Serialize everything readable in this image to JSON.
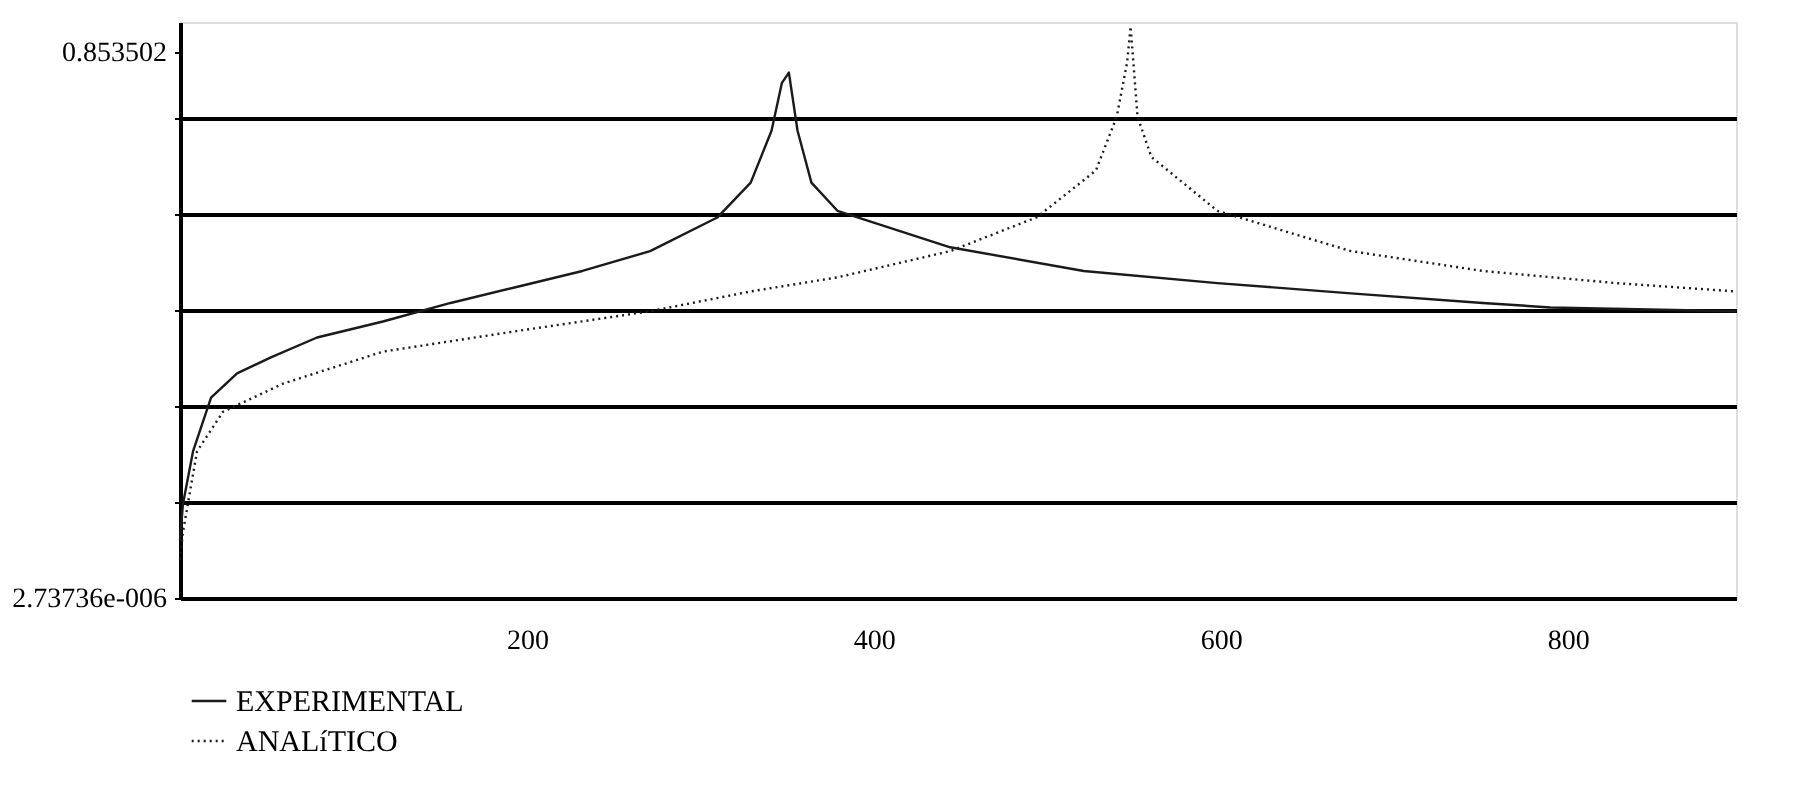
{
  "chart_data": {
    "type": "line",
    "xlim": [
      0,
      897
    ],
    "xticks": [
      200,
      400,
      600,
      800
    ],
    "ylim": [
      2.73736e-06,
      0.9
    ],
    "yticks": [
      {
        "value": 2.73736e-06,
        "label": "2.73736e-006"
      },
      {
        "value": 0.15,
        "label": null
      },
      {
        "value": 0.3,
        "label": null
      },
      {
        "value": 0.45,
        "label": null
      },
      {
        "value": 0.6,
        "label": null
      },
      {
        "value": 0.75,
        "label": null
      },
      {
        "value": 0.853502,
        "label": "0.853502"
      }
    ],
    "grid": "y",
    "legend": "bottom",
    "series": [
      {
        "name": "EXPERIMENTAL",
        "color": "#1a1a1a",
        "line_style": "solid",
        "x": [
          0,
          1.7,
          7.5,
          17.9,
          32.9,
          52.4,
          79,
          117,
          156,
          194,
          232,
          271,
          310,
          329,
          341,
          347,
          351,
          356,
          364,
          379,
          444,
          521,
          598,
          675,
          751,
          790,
          897
        ],
        "values": [
          0.09,
          0.147,
          0.229,
          0.313,
          0.351,
          0.376,
          0.407,
          0.432,
          0.461,
          0.486,
          0.511,
          0.542,
          0.595,
          0.649,
          0.73,
          0.805,
          0.821,
          0.73,
          0.649,
          0.605,
          0.548,
          0.511,
          0.492,
          0.476,
          0.461,
          0.454,
          0.448
        ]
      },
      {
        "name": "ANALíTICO",
        "color": "#1a1a1a",
        "line_style": "dotted",
        "x": [
          0,
          1.7,
          9.8,
          24.8,
          59.5,
          117,
          194,
          271,
          329,
          379,
          444,
          494,
          528,
          540,
          546,
          548,
          552,
          560,
          598,
          675,
          751,
          828,
          897
        ],
        "values": [
          0.06,
          0.103,
          0.229,
          0.291,
          0.335,
          0.385,
          0.417,
          0.448,
          0.479,
          0.501,
          0.542,
          0.595,
          0.668,
          0.752,
          0.837,
          0.893,
          0.752,
          0.689,
          0.605,
          0.542,
          0.511,
          0.492,
          0.479
        ]
      }
    ]
  }
}
